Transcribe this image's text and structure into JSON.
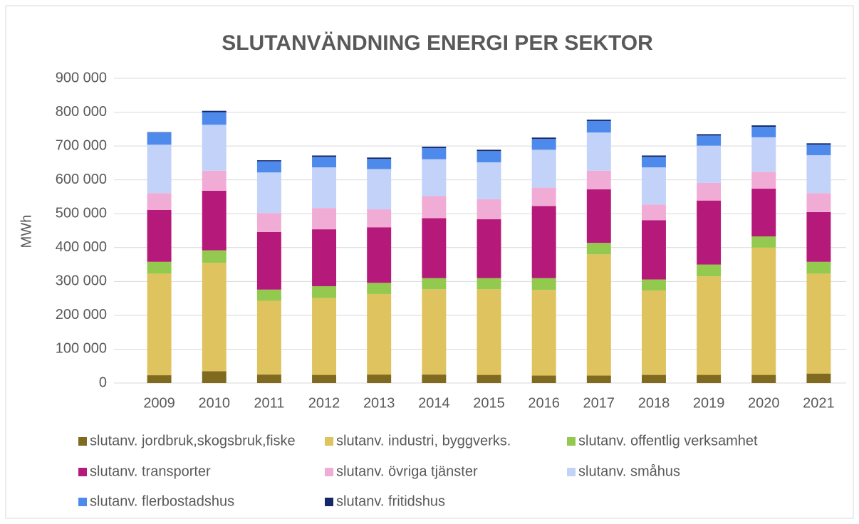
{
  "chart_data": {
    "type": "stacked_bar",
    "title": "SLUTANVÄNDNING ENERGI PER SEKTOR",
    "y_label": "MWh",
    "categories": [
      "2009",
      "2010",
      "2011",
      "2012",
      "2013",
      "2014",
      "2015",
      "2016",
      "2017",
      "2018",
      "2019",
      "2020",
      "2021"
    ],
    "series": [
      {
        "name": "slutanv. jordbruk,skogsbruk,fiske",
        "color": "#7f6a1f",
        "values": [
          23000,
          35000,
          25000,
          24000,
          25000,
          25000,
          24000,
          22000,
          22000,
          24000,
          24000,
          24000,
          28000
        ]
      },
      {
        "name": "slutanv. industri, byggverks.",
        "color": "#dfc35f",
        "values": [
          300000,
          320000,
          218000,
          227000,
          238000,
          252000,
          253000,
          253000,
          358000,
          249000,
          291000,
          376000,
          295000
        ]
      },
      {
        "name": "slutanv. offentlig verksamhet",
        "color": "#93c94e",
        "values": [
          35000,
          37000,
          33000,
          35000,
          33000,
          33000,
          33000,
          35000,
          34000,
          33000,
          35000,
          33000,
          35000
        ]
      },
      {
        "name": "slutanv. transporter",
        "color": "#b5197a",
        "values": [
          153000,
          176000,
          170000,
          168000,
          164000,
          177000,
          174000,
          213000,
          158000,
          175000,
          189000,
          141000,
          147000
        ]
      },
      {
        "name": "slutanv. övriga tjänster",
        "color": "#f1acd6",
        "values": [
          50000,
          59000,
          56000,
          63000,
          53000,
          65000,
          59000,
          54000,
          55000,
          46000,
          52000,
          50000,
          56000
        ]
      },
      {
        "name": "slutanv. småhus",
        "color": "#c2d2f8",
        "values": [
          143000,
          136000,
          120000,
          120000,
          119000,
          109000,
          109000,
          112000,
          113000,
          110000,
          110000,
          102000,
          112000
        ]
      },
      {
        "name": "slutanv. flerbostadshus",
        "color": "#4e89ec",
        "values": [
          36000,
          37000,
          33000,
          31000,
          30000,
          33000,
          33000,
          32000,
          34000,
          31000,
          30000,
          31000,
          31000
        ]
      },
      {
        "name": "slutanv. fritidshus",
        "color": "#142868",
        "values": [
          1000,
          4000,
          3000,
          4000,
          4000,
          4000,
          4000,
          4000,
          4000,
          4000,
          4000,
          4000,
          4000
        ]
      }
    ],
    "ylim": [
      0,
      900000
    ],
    "yticks": [
      0,
      {
        "value": 100000,
        "label": "100 000"
      },
      {
        "value": 200000,
        "label": "200 000"
      },
      {
        "value": 300000,
        "label": "300 000"
      },
      {
        "value": 400000,
        "label": "400 000"
      },
      {
        "value": 500000,
        "label": "500 000"
      },
      {
        "value": 600000,
        "label": "600 000"
      },
      {
        "value": 700000,
        "label": "700 000"
      },
      {
        "value": 800000,
        "label": "800 000"
      },
      {
        "value": 900000,
        "label": "900 000"
      }
    ],
    "grid": true,
    "legend": "bottom"
  }
}
